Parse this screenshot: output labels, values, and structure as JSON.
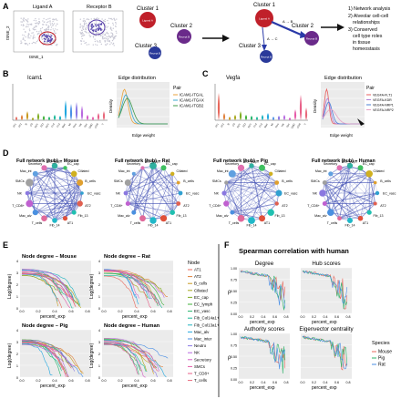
{
  "panel_letters": [
    "A",
    "B",
    "C",
    "D",
    "E",
    "F"
  ],
  "panel_a": {
    "tsne_titles": [
      "Ligand A",
      "Receptor B"
    ],
    "tsne_xlabel": "tSNE_1",
    "tsne_ylabel": "tSNE_2",
    "cluster_labels": [
      "Cluster 1",
      "Cluster 2",
      "Cluster 3"
    ],
    "node_labels": {
      "ligand": "Ligand A",
      "receptor": "Recept B"
    },
    "edge_labels": [
      "A → B",
      "A → C"
    ],
    "steps": [
      "1) Network analysis",
      "2) Alveolar cell-cell",
      "relationships",
      "3) Conserved",
      "cell type roles",
      "in tissue",
      "homeostasis"
    ]
  },
  "panel_b": {
    "gene": "Icam1",
    "dist_title": "Edge distribution",
    "xlabel": "Edge weight",
    "ylabel": "Density",
    "legend_title": "Pair",
    "pairs": [
      "ICAM1-ITGAL",
      "ICAM1-ITGAX",
      "ICAM1-ITGB2"
    ],
    "pair_colors": [
      "#e8a23b",
      "#3aa8d0",
      "#3f9a4a"
    ]
  },
  "panel_c": {
    "gene": "Vegfa",
    "dist_title": "Edge distribution",
    "xlabel": "Edge weight",
    "ylabel": "Density",
    "legend_title": "Pair",
    "pairs": [
      "VEGFA-FLT1",
      "VEGFA-KDR",
      "VEGFA-NRP1",
      "VEGFA-NRP2"
    ],
    "pair_colors": [
      "#e85c5c",
      "#b07fd6",
      "#4a7fd6",
      "#e6a0c4"
    ]
  },
  "panel_d": {
    "titles": [
      "Full network (hub) – Mouse",
      "Full network (hub) – Rat",
      "Full network (hub) – Pig",
      "Full network (hub) – Human"
    ],
    "node_labels": [
      "EC_lymph",
      "EC_cap",
      "Ciliated",
      "B_cells",
      "EC_vasc",
      "AT2",
      "Fib_13",
      "AT1",
      "Fib_14",
      "T_cells",
      "Mac_alv",
      "T_CD8+",
      "NK",
      "SMCs",
      "Mac_int",
      "Secretory"
    ]
  },
  "panel_e": {
    "titles": [
      "Node degree – Mouse",
      "Node degree – Rat",
      "Node degree – Pig",
      "Node degree – Human"
    ],
    "xlabel": "percent_exp",
    "ylabel": "Log(degree)",
    "y_ticks": [
      "4",
      "3",
      "2",
      "1",
      "0"
    ],
    "x_ticks": [
      "0.0",
      "0.2",
      "0.4",
      "0.6",
      "0.8"
    ],
    "legend_title": "Node",
    "legend_items": [
      "AT1",
      "AT2",
      "B_cells",
      "Ciliated",
      "EC_cap",
      "EC_lymph",
      "EC_vasc",
      "Fib_Col14a1+",
      "Fib_Col13a1+",
      "Mac_alv",
      "Mac_inter",
      "Neutro",
      "NK",
      "Secretory",
      "SMCs",
      "T_CD8+",
      "T_cells"
    ],
    "legend_colors": [
      "#e8685c",
      "#e0803a",
      "#c99a20",
      "#a8a81c",
      "#7fae22",
      "#3fb13a",
      "#22b56a",
      "#1db898",
      "#1fb4c0",
      "#22a8e0",
      "#4a8fe6",
      "#8a78e6",
      "#b86ae0",
      "#d65ec8",
      "#e65aa8",
      "#e86088",
      "#e8687a"
    ]
  },
  "panel_f": {
    "title": "Spearman correlation with human",
    "subtitles": [
      "Degree",
      "Hub scores",
      "Authority scores",
      "Eigenvector centrality"
    ],
    "xlabel": "percent_exp",
    "ylabel": "ρ",
    "x_ticks": [
      "0.0",
      "0.2",
      "0.4",
      "0.6",
      "0.8"
    ],
    "y_ticks": [
      "1.00",
      "0.75",
      "0.50",
      "0.25",
      "0.00"
    ],
    "legend_title": "Species",
    "species": [
      "Mouse",
      "Pig",
      "Rat"
    ],
    "species_colors": [
      "#e8685c",
      "#2fb36a",
      "#4a8fe6"
    ]
  }
}
